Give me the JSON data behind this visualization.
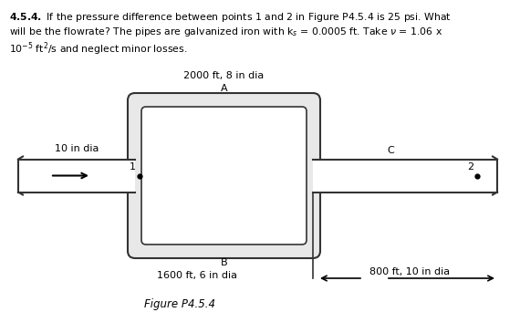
{
  "figure_caption": "Figure P4.5.4",
  "label_top": "2000 ft, 8 in dia",
  "label_A": "A",
  "label_B": "B",
  "label_C": "C",
  "label_1": "1",
  "label_2": "2",
  "label_left_pipe": "10 in dia",
  "label_bottom": "1600 ft, 6 in dia",
  "label_right": "800 ft, 10 in dia",
  "bg_color": "#ffffff",
  "line_color": "#333333",
  "text_color": "#000000",
  "line1": "$\\mathbf{4.5.4.}$ If the pressure difference between points 1 and 2 in Figure P4.5.4 is 25 psi. What",
  "line2": "will be the flowrate? The pipes are galvanized iron with k$_s$ = 0.0005 ft. Take $\\nu$ = 1.06 x",
  "line3": "10$^{-5}$ ft$^2$/s and neglect minor losses."
}
